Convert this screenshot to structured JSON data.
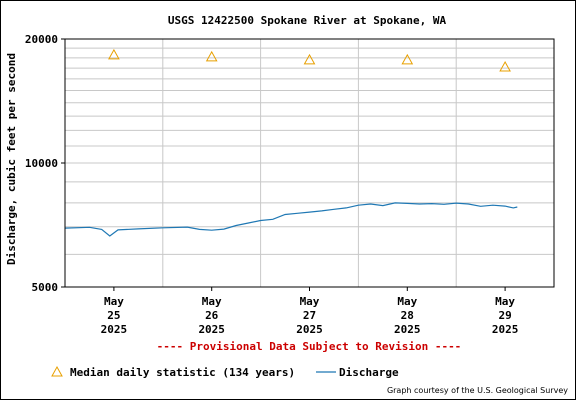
{
  "chart_data": {
    "type": "line",
    "title": "USGS 12422500 Spokane River at Spokane, WA",
    "ylabel": "Discharge, cubic feet per second",
    "xlabel": "",
    "y_scale": "log",
    "ylim": [
      5000,
      20000
    ],
    "y_ticks": [
      5000,
      10000,
      20000
    ],
    "grid": true,
    "x_range": [
      "2025-05-24T12:00",
      "2025-05-29T12:00"
    ],
    "x_ticks": [
      {
        "date": "2025-05-25",
        "label": [
          "May",
          "25",
          "2025"
        ]
      },
      {
        "date": "2025-05-26",
        "label": [
          "May",
          "26",
          "2025"
        ]
      },
      {
        "date": "2025-05-27",
        "label": [
          "May",
          "27",
          "2025"
        ]
      },
      {
        "date": "2025-05-28",
        "label": [
          "May",
          "28",
          "2025"
        ]
      },
      {
        "date": "2025-05-29",
        "label": [
          "May",
          "29",
          "2025"
        ]
      }
    ],
    "series": [
      {
        "name": "Discharge",
        "kind": "line",
        "color": "#1f78b4",
        "points": [
          [
            "2025-05-24T12:00",
            6950
          ],
          [
            "2025-05-24T18:00",
            6980
          ],
          [
            "2025-05-24T21:00",
            6900
          ],
          [
            "2025-05-24T23:00",
            6650
          ],
          [
            "2025-05-25T01:00",
            6880
          ],
          [
            "2025-05-25T06:00",
            6920
          ],
          [
            "2025-05-25T12:00",
            6960
          ],
          [
            "2025-05-25T18:00",
            6990
          ],
          [
            "2025-05-25T21:00",
            6900
          ],
          [
            "2025-05-26T00:00",
            6870
          ],
          [
            "2025-05-26T03:00",
            6910
          ],
          [
            "2025-05-26T06:00",
            7050
          ],
          [
            "2025-05-26T09:00",
            7150
          ],
          [
            "2025-05-26T12:00",
            7250
          ],
          [
            "2025-05-26T15:00",
            7300
          ],
          [
            "2025-05-26T18:00",
            7500
          ],
          [
            "2025-05-26T21:00",
            7550
          ],
          [
            "2025-05-27T00:00",
            7600
          ],
          [
            "2025-05-27T03:00",
            7650
          ],
          [
            "2025-05-27T06:00",
            7720
          ],
          [
            "2025-05-27T09:00",
            7780
          ],
          [
            "2025-05-27T12:00",
            7900
          ],
          [
            "2025-05-27T15:00",
            7950
          ],
          [
            "2025-05-27T18:00",
            7880
          ],
          [
            "2025-05-27T21:00",
            8000
          ],
          [
            "2025-05-28T00:00",
            7980
          ],
          [
            "2025-05-28T03:00",
            7950
          ],
          [
            "2025-05-28T06:00",
            7970
          ],
          [
            "2025-05-28T09:00",
            7940
          ],
          [
            "2025-05-28T12:00",
            7990
          ],
          [
            "2025-05-28T15:00",
            7950
          ],
          [
            "2025-05-28T18:00",
            7850
          ],
          [
            "2025-05-28T21:00",
            7900
          ],
          [
            "2025-05-29T00:00",
            7860
          ],
          [
            "2025-05-29T02:00",
            7780
          ],
          [
            "2025-05-29T03:00",
            7820
          ]
        ]
      },
      {
        "name": "Median daily statistic (134 years)",
        "kind": "marker",
        "marker": "triangle",
        "color": "#e8a000",
        "points": [
          [
            "2025-05-25T00:00",
            18300
          ],
          [
            "2025-05-26T00:00",
            18100
          ],
          [
            "2025-05-27T00:00",
            17800
          ],
          [
            "2025-05-28T00:00",
            17800
          ],
          [
            "2025-05-29T00:00",
            17100
          ]
        ]
      }
    ],
    "legend": [
      {
        "label": "Median daily statistic (134 years)",
        "marker": "triangle",
        "color": "#e8a000"
      },
      {
        "label": "Discharge",
        "marker": "line",
        "color": "#1f78b4"
      }
    ],
    "legend_position": "bottom",
    "notice": "---- Provisional Data Subject to Revision ----",
    "notice_color": "#cc0000",
    "credit": "Graph courtesy of the U.S. Geological Survey"
  }
}
